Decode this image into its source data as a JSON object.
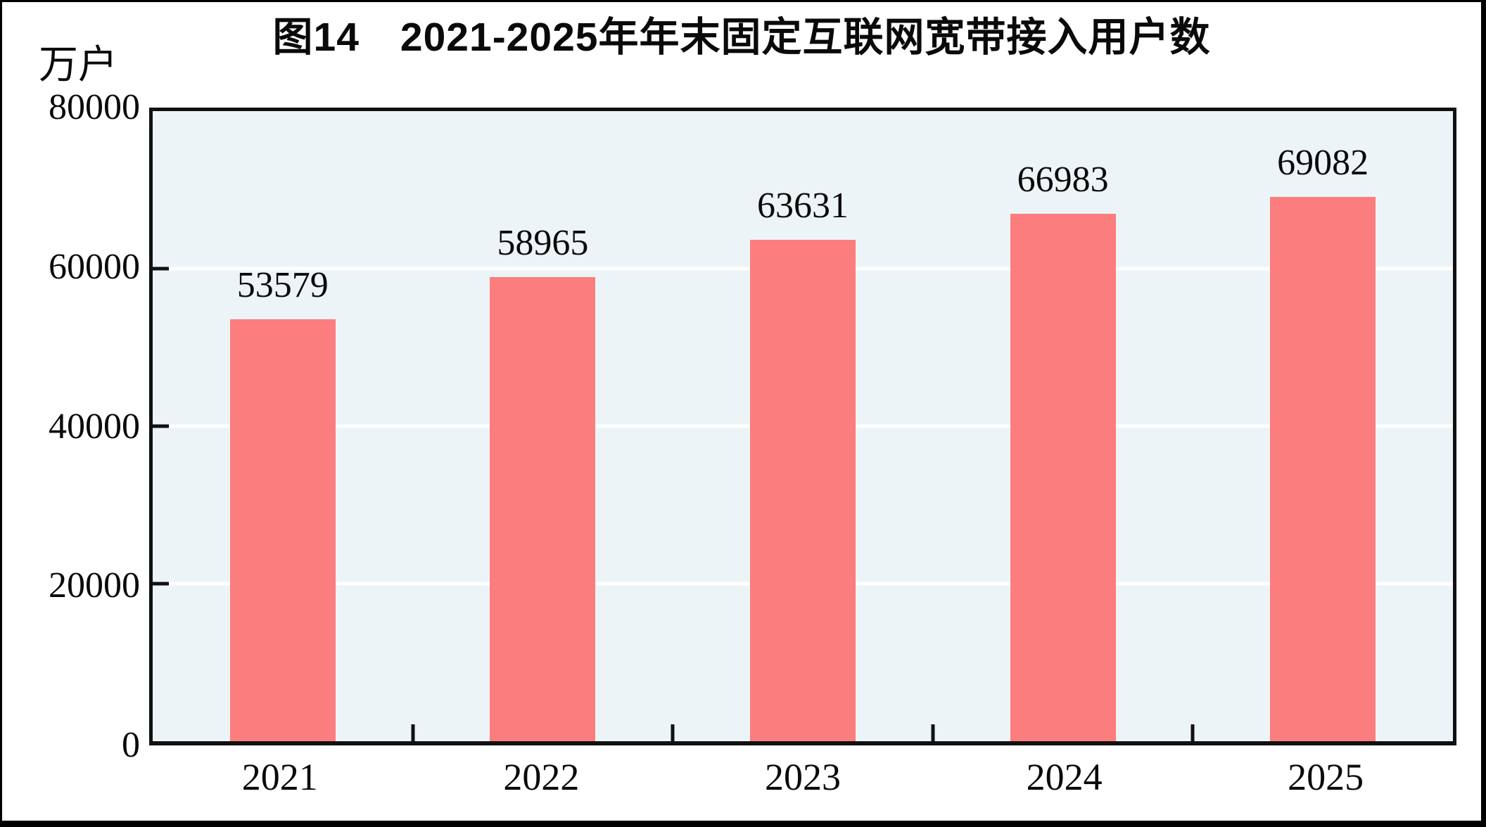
{
  "figure": {
    "title": "图14　2021-2025年年末固定互联网宽带接入用户数",
    "unit_label": "万户"
  },
  "chart_data": {
    "type": "bar",
    "categories": [
      "2021",
      "2022",
      "2023",
      "2024",
      "2025"
    ],
    "values": [
      53579,
      58965,
      63631,
      66983,
      69082
    ],
    "data_labels": [
      "53579",
      "58965",
      "63631",
      "66983",
      "69082"
    ],
    "title": "图14　2021-2025年年末固定互联网宽带接入用户数",
    "xlabel": "",
    "ylabel": "万户",
    "ylim": [
      0,
      80000
    ],
    "yticks": [
      0,
      20000,
      40000,
      60000,
      80000
    ],
    "ytick_labels": [
      "0",
      "20000",
      "40000",
      "60000",
      "80000"
    ],
    "grid": "horizontal-white-lines-at-20000-40000-60000",
    "legend_position": "none",
    "colors": {
      "bar": "#FC7D7D",
      "plot_background": "#EDF4F7",
      "gridline": "#FFFFFF",
      "axis": "#111111",
      "text": "#0A0A0A",
      "page_background": "#FFFFFF",
      "outer_border": "#000000"
    }
  }
}
